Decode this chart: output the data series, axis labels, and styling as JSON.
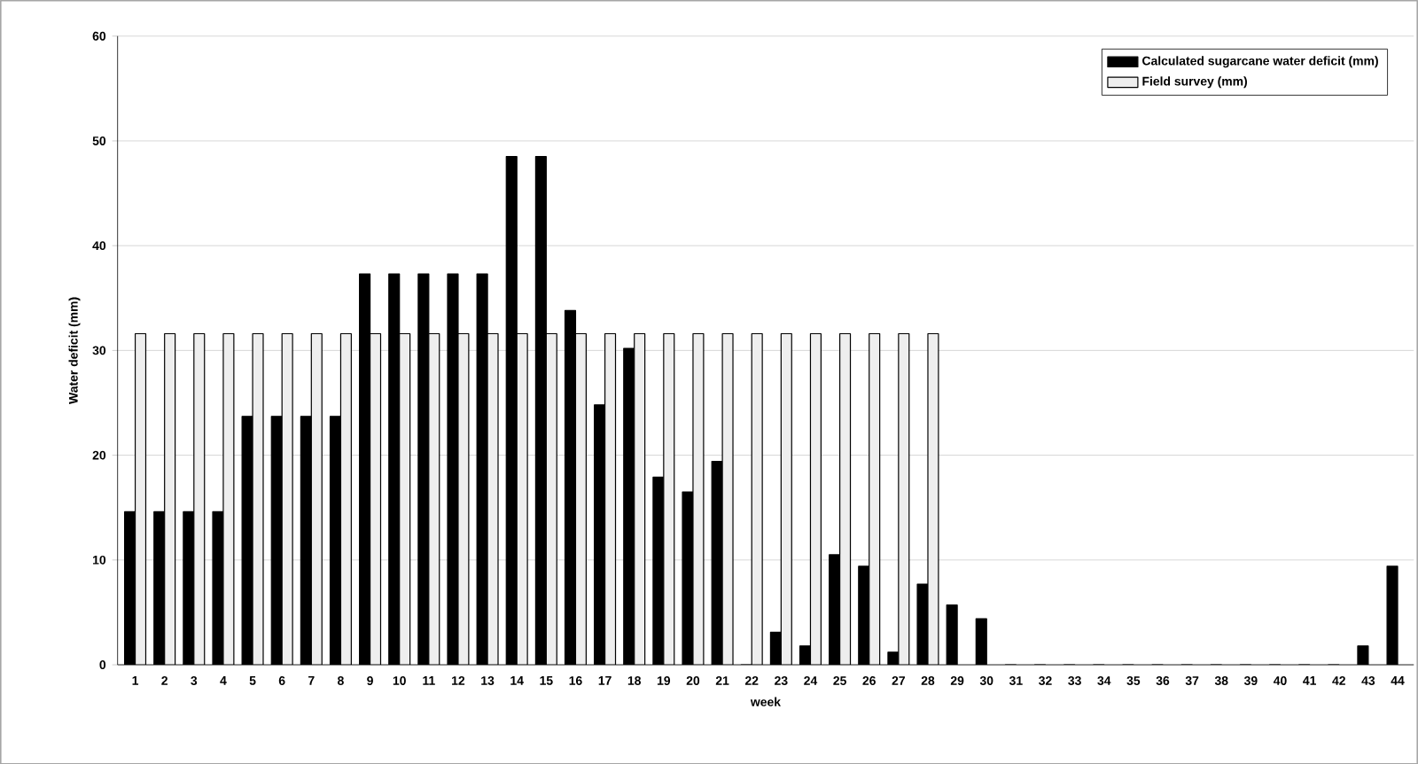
{
  "chart_data": {
    "type": "bar",
    "xlabel": "week",
    "ylabel": "Water deficit (mm)",
    "categories": [
      "1",
      "2",
      "3",
      "4",
      "5",
      "6",
      "7",
      "8",
      "9",
      "10",
      "11",
      "12",
      "13",
      "14",
      "15",
      "16",
      "17",
      "18",
      "19",
      "20",
      "21",
      "22",
      "23",
      "24",
      "25",
      "26",
      "27",
      "28",
      "29",
      "30",
      "31",
      "32",
      "33",
      "34",
      "35",
      "36",
      "37",
      "38",
      "39",
      "40",
      "41",
      "42",
      "43",
      "44"
    ],
    "series": [
      {
        "name": "Calculated sugarcane water deficit (mm)",
        "color": "#000000",
        "values": [
          14.6,
          14.6,
          14.6,
          14.6,
          23.7,
          23.7,
          23.7,
          23.7,
          37.3,
          37.3,
          37.3,
          37.3,
          37.3,
          48.5,
          48.5,
          33.8,
          24.8,
          30.2,
          17.9,
          16.5,
          19.4,
          0,
          3.1,
          1.8,
          10.5,
          9.4,
          1.2,
          7.7,
          5.7,
          4.4,
          0,
          0,
          0,
          0,
          0,
          0,
          0,
          0,
          0,
          0,
          0,
          0,
          1.8,
          9.4
        ]
      },
      {
        "name": "Field survey (mm)",
        "color": "#eeeeee",
        "values": [
          31.6,
          31.6,
          31.6,
          31.6,
          31.6,
          31.6,
          31.6,
          31.6,
          31.6,
          31.6,
          31.6,
          31.6,
          31.6,
          31.6,
          31.6,
          31.6,
          31.6,
          31.6,
          31.6,
          31.6,
          31.6,
          31.6,
          31.6,
          31.6,
          31.6,
          31.6,
          31.6,
          31.6,
          null,
          null,
          null,
          null,
          null,
          null,
          null,
          null,
          null,
          null,
          null,
          null,
          null,
          null,
          null,
          null
        ]
      }
    ],
    "ylim": [
      0,
      60
    ],
    "yticks": [
      0,
      10,
      20,
      30,
      40,
      50,
      60
    ],
    "grid": "y",
    "legend": "top right"
  }
}
